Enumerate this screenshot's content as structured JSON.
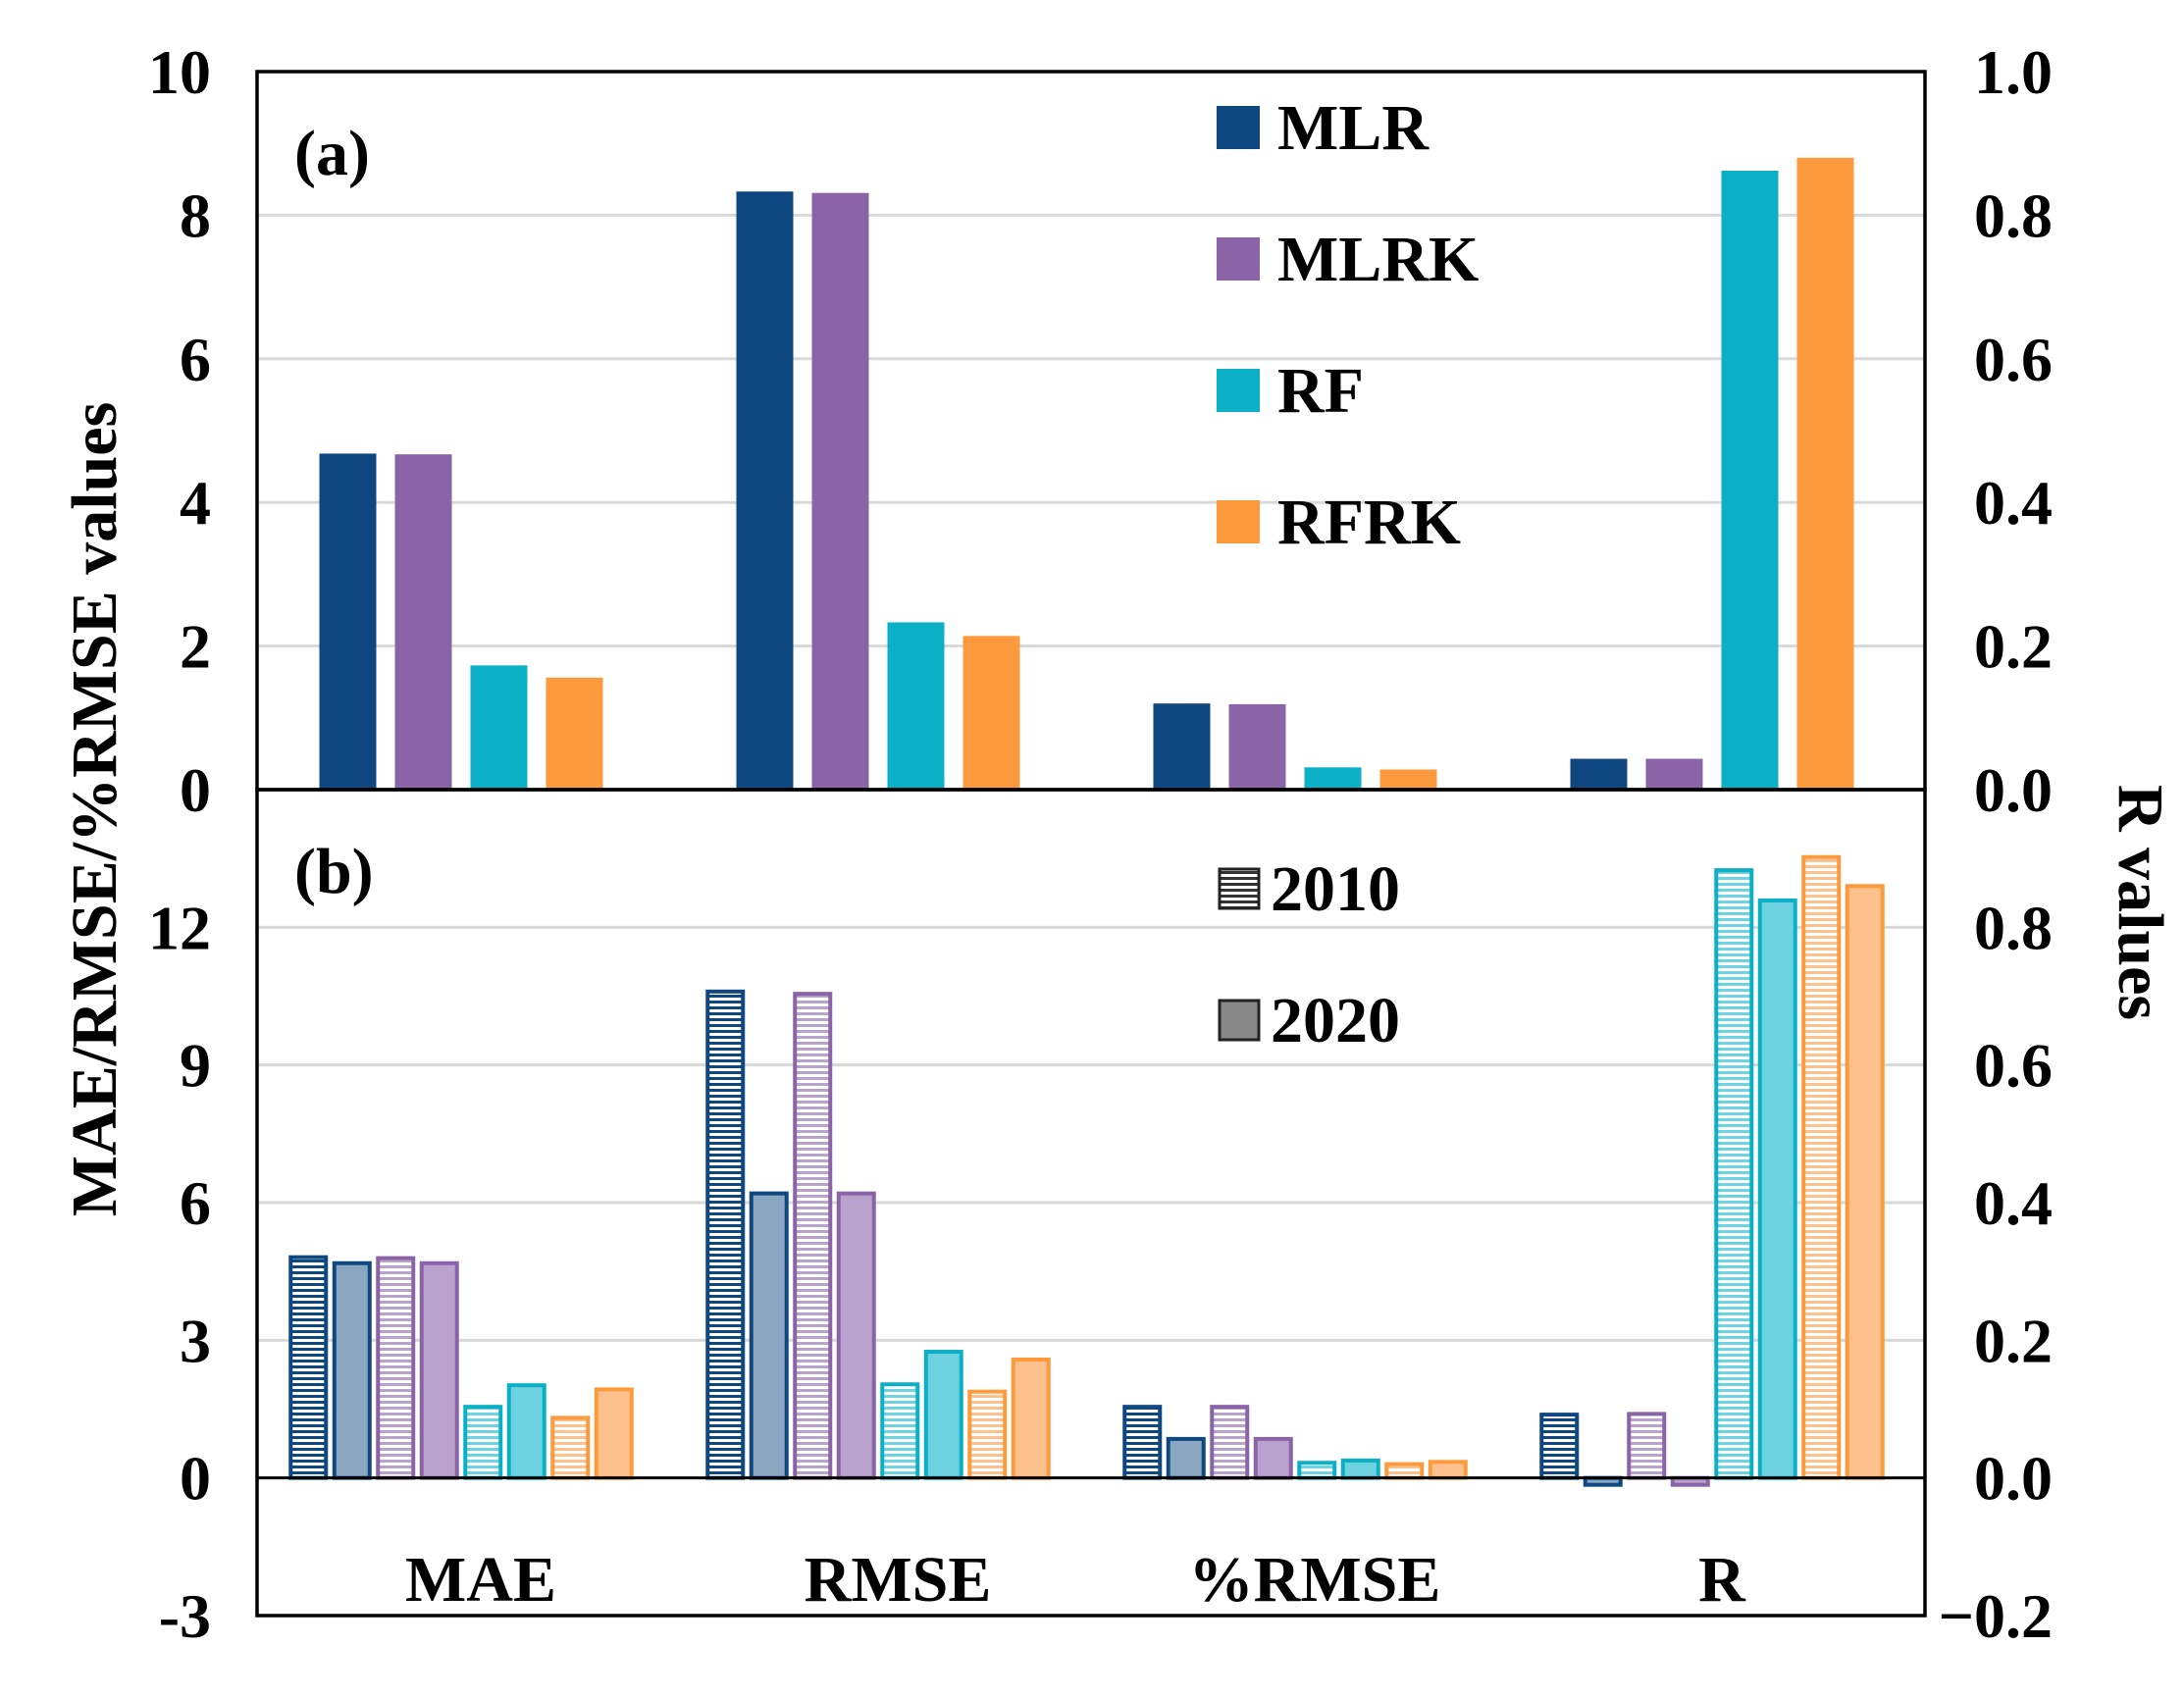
{
  "chart_data": {
    "type": "bar",
    "categories": [
      "MAE",
      "RMSE",
      "%RMSE",
      "R"
    ],
    "left_axis_label": "MAE/RMSE/%RMSE values",
    "right_axis_label": "R values",
    "colors": {
      "MLR": "#0f4780",
      "MLRK": "#8a64a6",
      "RF": "#0bb0c6",
      "RFRK": "#fd9a3d"
    },
    "panels": [
      {
        "label": "(a)",
        "left_ylim": [
          0,
          10
        ],
        "left_ticks": [
          "0",
          "2",
          "4",
          "6",
          "8",
          "10"
        ],
        "right_ylim": [
          0,
          1
        ],
        "right_ticks": [
          "0.0",
          "0.2",
          "0.4",
          "0.6",
          "0.8",
          "1.0"
        ],
        "legend": [
          "MLR",
          "MLRK",
          "RF",
          "RFRK"
        ],
        "series": [
          {
            "name": "MLR",
            "values": [
              4.68,
              8.33,
              1.2,
              0.043
            ]
          },
          {
            "name": "MLRK",
            "values": [
              4.67,
              8.31,
              1.19,
              0.043
            ]
          },
          {
            "name": "RF",
            "values": [
              1.73,
              2.33,
              0.31,
              0.862
            ]
          },
          {
            "name": "RFRK",
            "values": [
              1.56,
              2.14,
              0.28,
              0.88
            ]
          }
        ]
      },
      {
        "label": "(b)",
        "left_ylim": [
          -3,
          15
        ],
        "left_ticks": [
          "-3",
          "0",
          "3",
          "6",
          "9",
          "12"
        ],
        "right_ylim": [
          -0.2,
          1.0
        ],
        "right_ticks": [
          "−0.2",
          "0.0",
          "0.2",
          "0.4",
          "0.6",
          "0.8"
        ],
        "legend": [
          "2010",
          "2020"
        ],
        "series": [
          {
            "name": "MLR 2010",
            "model": "MLR",
            "year": "2010",
            "values": [
              4.81,
              10.6,
              1.55,
              0.092
            ]
          },
          {
            "name": "MLR 2020",
            "model": "MLR",
            "year": "2020",
            "values": [
              4.68,
              6.2,
              0.85,
              -0.01
            ]
          },
          {
            "name": "MLRK 2010",
            "model": "MLRK",
            "year": "2010",
            "values": [
              4.79,
              10.55,
              1.55,
              0.093
            ]
          },
          {
            "name": "MLRK 2020",
            "model": "MLRK",
            "year": "2020",
            "values": [
              4.68,
              6.2,
              0.85,
              -0.01
            ]
          },
          {
            "name": "RF 2010",
            "model": "RF",
            "year": "2010",
            "values": [
              1.55,
              2.04,
              0.33,
              0.883
            ]
          },
          {
            "name": "RF 2020",
            "model": "RF",
            "year": "2020",
            "values": [
              2.02,
              2.75,
              0.38,
              0.839
            ]
          },
          {
            "name": "RFRK 2010",
            "model": "RFRK",
            "year": "2010",
            "values": [
              1.31,
              1.88,
              0.3,
              0.902
            ]
          },
          {
            "name": "RFRK 2020",
            "model": "RFRK",
            "year": "2020",
            "values": [
              1.93,
              2.58,
              0.35,
              0.86
            ]
          }
        ]
      }
    ]
  }
}
